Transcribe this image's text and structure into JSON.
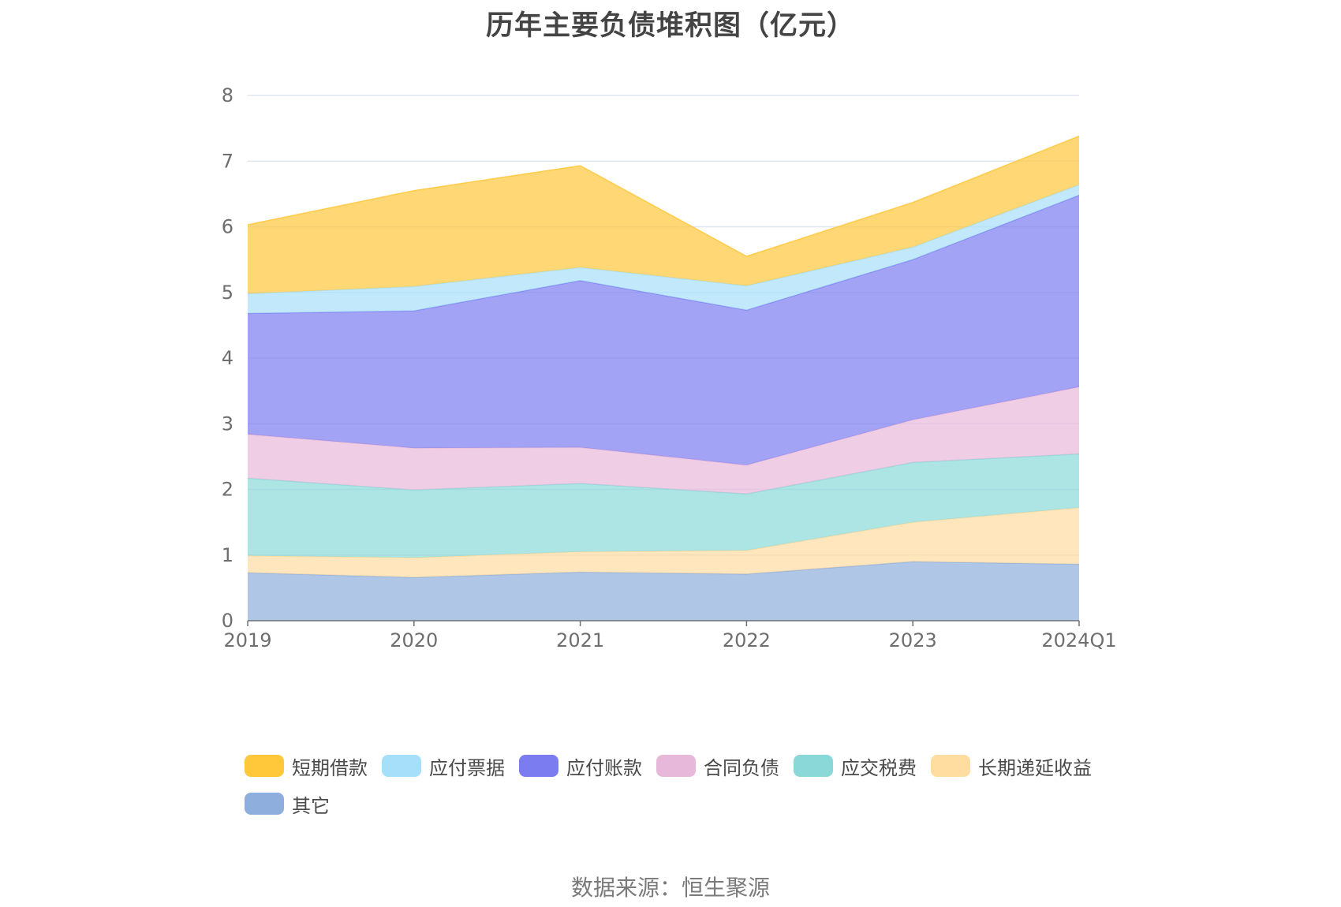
{
  "chart_data": {
    "type": "area",
    "stacked": true,
    "title": "历年主要负债堆积图（亿元）",
    "x": [
      "2019",
      "2020",
      "2021",
      "2022",
      "2023",
      "2024Q1"
    ],
    "ylim": [
      0,
      8
    ],
    "yticks": [
      "0",
      "1",
      "2",
      "3",
      "4",
      "5",
      "6",
      "7",
      "8"
    ],
    "grid": true,
    "legend_position": "bottom",
    "series": [
      {
        "name": "其它",
        "color": "#8eaedd",
        "values": [
          0.73,
          0.66,
          0.74,
          0.71,
          0.9,
          0.86
        ]
      },
      {
        "name": "长期递延收益",
        "color": "#ffdca0",
        "values": [
          0.26,
          0.3,
          0.31,
          0.36,
          0.6,
          0.86
        ]
      },
      {
        "name": "应交税费",
        "color": "#8ad8d8",
        "values": [
          1.18,
          1.03,
          1.04,
          0.86,
          0.91,
          0.82
        ]
      },
      {
        "name": "合同负债",
        "color": "#e8b8da",
        "values": [
          0.67,
          0.64,
          0.55,
          0.44,
          0.65,
          1.02
        ]
      },
      {
        "name": "应付账款",
        "color": "#7b7cf0",
        "values": [
          1.84,
          2.09,
          2.54,
          2.36,
          2.44,
          2.92
        ]
      },
      {
        "name": "应付票据",
        "color": "#a6dff9",
        "values": [
          0.3,
          0.37,
          0.2,
          0.37,
          0.19,
          0.16
        ]
      },
      {
        "name": "短期借款",
        "color": "#ffc73a",
        "values": [
          1.05,
          1.46,
          1.55,
          0.45,
          0.68,
          0.74
        ]
      }
    ],
    "legend_order": [
      "短期借款",
      "应付票据",
      "应付账款",
      "合同负债",
      "应交税费",
      "长期递延收益",
      "其它"
    ],
    "source": "数据来源：恒生聚源"
  }
}
